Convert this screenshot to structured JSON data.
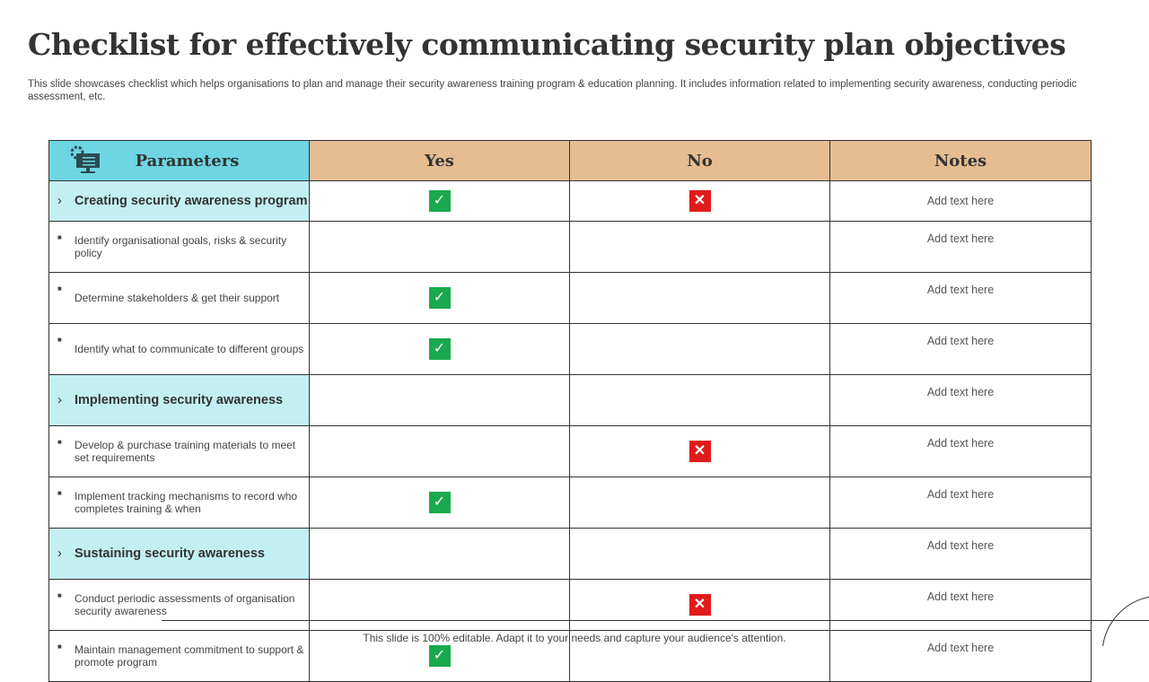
{
  "title": "Checklist for effectively communicating security plan objectives",
  "subtitle": "This slide showcases checklist which helps organisations to plan and manage their security awareness training program & education planning. It includes information related to implementing security awareness, conducting periodic assessment, etc.",
  "table": {
    "headers": [
      "Parameters",
      "Yes",
      "No",
      "Notes"
    ],
    "header_icon": "computer-settings-icon",
    "rows": [
      {
        "type": "section",
        "label": "Creating security awareness program",
        "yes": true,
        "no": true,
        "note": "Add text here"
      },
      {
        "type": "item",
        "label": "Identify organisational goals, risks & security policy",
        "yes": false,
        "no": false,
        "note": "Add text here"
      },
      {
        "type": "item",
        "label": "Determine stakeholders & get their support",
        "yes": true,
        "no": false,
        "note": "Add text here"
      },
      {
        "type": "item",
        "label": "Identify what to communicate to different groups",
        "yes": true,
        "no": false,
        "note": "Add text here"
      },
      {
        "type": "section",
        "label": "Implementing security awareness",
        "yes": false,
        "no": false,
        "note": "Add text here"
      },
      {
        "type": "item",
        "label": "Develop & purchase training materials to meet set requirements",
        "yes": false,
        "no": true,
        "note": "Add text here"
      },
      {
        "type": "item",
        "label": "Implement tracking mechanisms to record who completes training & when",
        "yes": true,
        "no": false,
        "note": "Add text here"
      },
      {
        "type": "section",
        "label": "Sustaining security awareness",
        "yes": false,
        "no": false,
        "note": "Add text here"
      },
      {
        "type": "item",
        "label": "Conduct periodic assessments of organisation security awareness",
        "yes": false,
        "no": true,
        "note": "Add text here"
      },
      {
        "type": "item",
        "label": "Maintain management commitment to support & promote program",
        "yes": true,
        "no": false,
        "note": "Add text here"
      }
    ]
  },
  "colors": {
    "check": "#1aa94e",
    "cross": "#e11b1b",
    "param_header": "#6dd6e2",
    "header": "#e5bd91",
    "section": "#c4eff2"
  },
  "footer": "This slide is 100% editable. Adapt it to your needs and capture your audience's attention."
}
